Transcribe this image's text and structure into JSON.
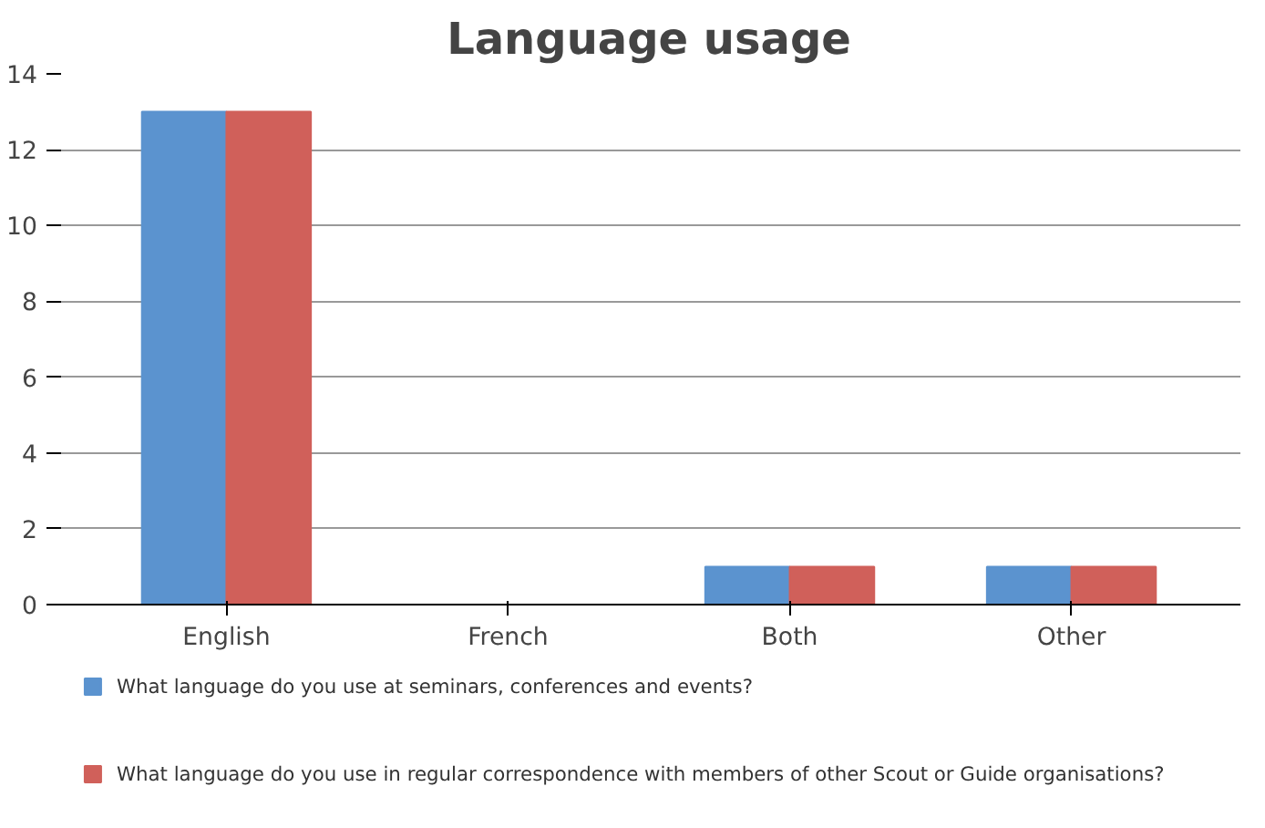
{
  "chart_data": {
    "type": "bar",
    "title": "Language usage",
    "categories": [
      "English",
      "French",
      "Both",
      "Other"
    ],
    "series": [
      {
        "name": "What language do you use at seminars, conferences and events?",
        "color": "#5b93cf",
        "values": [
          13,
          0,
          1,
          1
        ]
      },
      {
        "name": "What language do you use in regular correspondence with members of other Scout or Guide organisations?",
        "color": "#d0605a",
        "values": [
          13,
          0,
          1,
          1
        ]
      }
    ],
    "ylim": [
      0,
      14
    ],
    "yticks": [
      0,
      2,
      4,
      6,
      8,
      10,
      12,
      14
    ],
    "grid": "y",
    "legend": "bottom"
  }
}
